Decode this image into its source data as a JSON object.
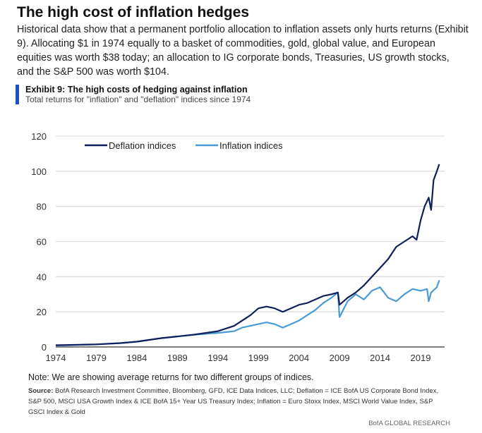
{
  "header": {
    "title": "The high cost of inflation hedges",
    "body": "Historical data show that a permanent portfolio allocation to inflation assets only hurts returns (Exhibit 9). Allocating $1 in 1974 equally to a basket of commodities, gold, global value, and European equities was worth $38 today; an allocation to IG corporate bonds, Treasuries, US growth stocks, and the S&P 500 was worth $104."
  },
  "exhibit": {
    "title": "Exhibit 9: The high costs of hedging against inflation",
    "subtitle": "Total returns for \"inflation\" and \"deflation\" indices since 1974"
  },
  "chart_data": {
    "type": "line",
    "title": "Exhibit 9: The high costs of hedging against inflation",
    "ylim": [
      0,
      120
    ],
    "xlim": [
      1974,
      2022
    ],
    "yticks": [
      0,
      20,
      40,
      60,
      80,
      100,
      120
    ],
    "xticks": [
      1974,
      1979,
      1984,
      1989,
      1994,
      1999,
      2004,
      2009,
      2014,
      2019
    ],
    "grid": "horizontal",
    "legend": "top-left",
    "series": [
      {
        "name": "Deflation indices",
        "color": "#0f1f5c",
        "x": [
          1974,
          1977,
          1979,
          1982,
          1984,
          1987,
          1989,
          1991,
          1994,
          1996,
          1997,
          1998,
          1999,
          2000,
          2001,
          2002,
          2003,
          2004,
          2005,
          2006,
          2007,
          2008,
          2008.8,
          2009,
          2010,
          2011,
          2012,
          2013,
          2014,
          2015,
          2016,
          2017,
          2018,
          2018.5,
          2019,
          2019.5,
          2020,
          2020.3,
          2020.6,
          2021,
          2021.3
        ],
        "y": [
          1,
          1.3,
          1.5,
          2.2,
          3,
          5,
          6,
          7,
          9,
          12,
          15,
          18,
          22,
          23,
          22,
          20,
          22,
          24,
          25,
          27,
          29,
          30,
          31,
          24,
          28,
          31,
          35,
          40,
          45,
          50,
          57,
          60,
          63,
          61,
          72,
          80,
          85,
          78,
          95,
          100,
          104
        ]
      },
      {
        "name": "Inflation indices",
        "color": "#4a9bd4",
        "x": [
          1974,
          1977,
          1979,
          1982,
          1984,
          1987,
          1989,
          1991,
          1994,
          1996,
          1997,
          1998,
          1999,
          2000,
          2001,
          2002,
          2003,
          2004,
          2005,
          2006,
          2007,
          2008,
          2008.8,
          2009,
          2010,
          2011,
          2012,
          2013,
          2014,
          2015,
          2016,
          2017,
          2018,
          2019,
          2019.8,
          2020,
          2020.3,
          2021,
          2021.3
        ],
        "y": [
          0.8,
          1.2,
          1.5,
          2.2,
          3,
          5,
          6,
          7,
          8,
          9,
          11,
          12,
          13,
          14,
          13,
          11,
          13,
          15,
          18,
          21,
          25,
          28,
          31,
          17,
          26,
          30,
          27,
          32,
          34,
          28,
          26,
          30,
          33,
          32,
          33,
          26,
          31,
          34,
          38
        ]
      }
    ]
  },
  "footer": {
    "note": "Note: We are showing average returns for two different groups of indices.",
    "source_label": "Source:",
    "source": " BofA Research Investment Committee, Bloomberg, GFD, ICE Data Indices, LLC; Deflation = ICE BofA US Corporate Bond Index, S&P 500, MSCI USA Growth Index & ICE BofA 15+ Year US Treasury Index; Inflation = Euro Stoxx Index, MSCI World Value Index, S&P GSCI Index & Gold",
    "brand": "BofA GLOBAL RESEARCH"
  }
}
